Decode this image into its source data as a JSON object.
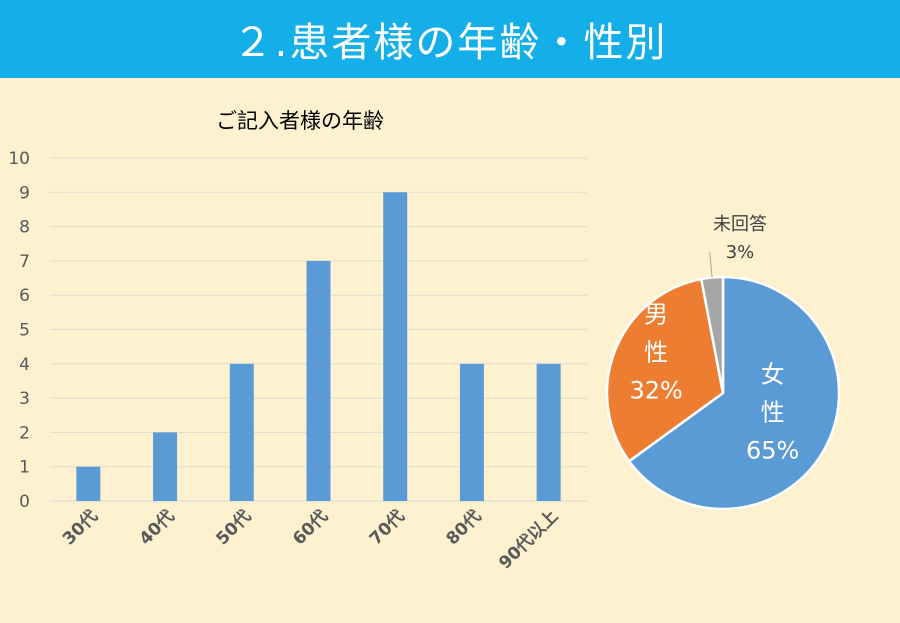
{
  "slide": {
    "title": "２.患者様の年齢・性別"
  },
  "chart_data": [
    {
      "type": "bar",
      "title": "ご記入者様の年齢",
      "categories": [
        "30代",
        "40代",
        "50代",
        "60代",
        "70代",
        "80代",
        "90代以上"
      ],
      "values": [
        1,
        2,
        4,
        7,
        9,
        4,
        4
      ],
      "ylim": [
        0,
        10
      ],
      "yticks": [
        0,
        1,
        2,
        3,
        4,
        5,
        6,
        7,
        8,
        9,
        10
      ],
      "grid": true,
      "color": "#5b9bd5",
      "xlabel": "",
      "ylabel": ""
    },
    {
      "type": "pie",
      "slices": [
        {
          "label": "女性",
          "value": 65,
          "value_label": "65%",
          "color": "#5b9bd5"
        },
        {
          "label": "男性",
          "value": 32,
          "value_label": "32%",
          "color": "#ed7d31"
        },
        {
          "label": "未回答",
          "value": 3,
          "value_label": "3%",
          "color": "#a5a5a5"
        }
      ]
    }
  ]
}
